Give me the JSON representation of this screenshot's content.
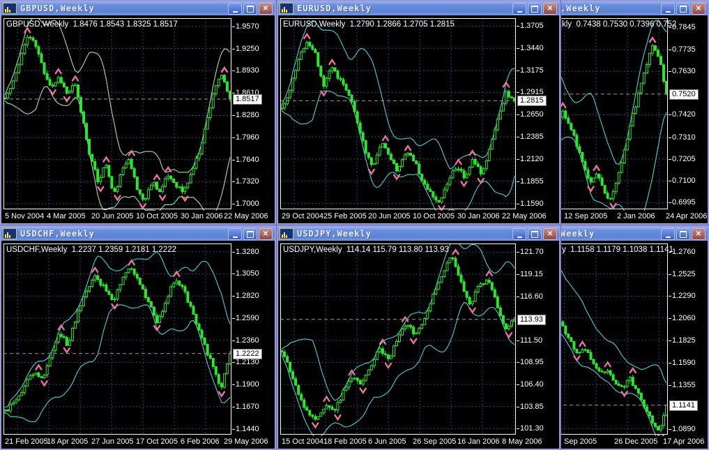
{
  "app": {
    "window_controls": {
      "minimize": "_",
      "maximize": "□",
      "close": "✕"
    }
  },
  "colors": {
    "candle_green": "#2ce62c",
    "band_cyan": "#46d2d8",
    "band_green": "#9fe2b2",
    "arrow_pink": "#e8739b",
    "grid_blue": "#3c3c7a",
    "titlebar_blue": "#5c82d6",
    "plot_frame": "#ffffff",
    "current_line_gray": "#9a9a9a"
  },
  "chart_data": [
    {
      "type": "candlestick",
      "window_title": "GBPUSD,Weekly",
      "info": "GBPUSD,Weekly  1.8476 1.8543 1.8325 1.8517",
      "ohlc": {
        "open": "1.8476",
        "high": "1.8543",
        "low": "1.8325",
        "close": "1.8517"
      },
      "y_ticks": [
        "1.9570",
        "1.9250",
        "1.8930",
        "1.8610",
        "1.8280",
        "1.7960",
        "1.7640",
        "1.7320",
        "1.7000"
      ],
      "current": "1.8517",
      "x_dates": [
        "5 Nov 2004",
        "4 Mar 2005",
        "20 Jun 2005",
        "10 Oct 2005",
        "30 Jan 2006",
        "22 May 2006"
      ],
      "ylim": [
        1.692,
        1.969
      ],
      "series_shape": [
        1.853,
        1.872,
        1.912,
        1.945,
        1.928,
        1.893,
        1.869,
        1.884,
        1.859,
        1.873,
        1.824,
        1.768,
        1.732,
        1.759,
        1.711,
        1.744,
        1.769,
        1.721,
        1.704,
        1.734,
        1.717,
        1.741,
        1.729,
        1.716,
        1.744,
        1.774,
        1.819,
        1.869,
        1.885,
        1.8517
      ],
      "band_color": "#9fe2b2",
      "seed": 11
    },
    {
      "type": "candlestick",
      "window_title": "EURUSD,Weekly",
      "info": "EURUSD,Weekly  1.2790 1.2866 1.2705 1.2815",
      "ohlc": {
        "open": "1.2790",
        "high": "1.2866",
        "low": "1.2705",
        "close": "1.2815"
      },
      "y_ticks": [
        "1.3705",
        "1.3440",
        "1.3175",
        "1.2915",
        "1.2650",
        "1.2385",
        "1.2120",
        "1.1855",
        "1.1590"
      ],
      "current": "1.2815",
      "x_dates": [
        "29 Oct 2004",
        "25 Feb 2005",
        "20 Jun 2005",
        "10 Oct 2005",
        "30 Jan 2006",
        "22 May 2006"
      ],
      "ylim": [
        1.152,
        1.38
      ],
      "series_shape": [
        1.272,
        1.294,
        1.329,
        1.354,
        1.341,
        1.299,
        1.321,
        1.307,
        1.294,
        1.261,
        1.224,
        1.204,
        1.234,
        1.217,
        1.197,
        1.224,
        1.209,
        1.184,
        1.169,
        1.161,
        1.184,
        1.204,
        1.191,
        1.211,
        1.194,
        1.224,
        1.261,
        1.291,
        1.2815
      ],
      "band_color": "#46d2d8",
      "seed": 22
    },
    {
      "type": "candlestick",
      "window_title": ",Weekly",
      "info": "kly  0.7438 0.7530 0.7396 0.752",
      "ohlc": {
        "open": "0.7438",
        "high": "0.7530",
        "low": "0.7396",
        "close": "0.7520"
      },
      "y_ticks": [
        "0.7845",
        "0.7735",
        "0.7630",
        "0.7420",
        "0.7310",
        "0.7205",
        "0.7100",
        "0.6995"
      ],
      "current": "0.7520",
      "x_dates": [
        "12 Sep 2005",
        "2 Jan 2006",
        "24 Apr 2006"
      ],
      "ylim": [
        0.6962,
        0.7888
      ],
      "series_shape": [
        0.766,
        0.76,
        0.753,
        0.747,
        0.74,
        0.734,
        0.744,
        0.738,
        0.728,
        0.718,
        0.708,
        0.714,
        0.704,
        0.7,
        0.712,
        0.726,
        0.74,
        0.752,
        0.764,
        0.776,
        0.77,
        0.752
      ],
      "band_color": "#46d2d8",
      "seed": 33
    },
    {
      "type": "candlestick",
      "window_title": "USDCHF,Weekly",
      "info": "USDCHF,Weekly  1.2237 1.2359 1.2181 1.2222",
      "ohlc": {
        "open": "1.2237",
        "high": "1.2359",
        "low": "1.2181",
        "close": "1.2222"
      },
      "y_ticks": [
        "1.3280",
        "1.3050",
        "1.2820",
        "1.2590",
        "1.2360",
        "1.2130",
        "1.1900",
        "1.1670",
        "1.1440"
      ],
      "current": "1.2222",
      "x_dates": [
        "21 Feb 2005",
        "18 Apr 2005",
        "27 Jun 2005",
        "17 Oct 2005",
        "6 Feb 2006",
        "29 May 2006"
      ],
      "ylim": [
        1.138,
        1.3365
      ],
      "series_shape": [
        1.162,
        1.171,
        1.184,
        1.204,
        1.194,
        1.217,
        1.244,
        1.231,
        1.261,
        1.287,
        1.304,
        1.291,
        1.277,
        1.299,
        1.311,
        1.294,
        1.274,
        1.254,
        1.281,
        1.301,
        1.284,
        1.261,
        1.234,
        1.211,
        1.187,
        1.2222
      ],
      "band_color": "#46d2d8",
      "seed": 44
    },
    {
      "type": "candlestick",
      "window_title": "USDJPY,Weekly",
      "info": "USDJPY,Weekly  114.14 115.79 113.80 113.93",
      "ohlc": {
        "open": "114.14",
        "high": "115.79",
        "low": "113.80",
        "close": "113.93"
      },
      "y_ticks": [
        "121.70",
        "119.15",
        "116.60",
        "111.50",
        "108.95",
        "106.40",
        "103.85",
        "101.30"
      ],
      "current": "113.93",
      "x_dates": [
        "15 Oct 2004",
        "18 Feb 2005",
        "6 Jun 2005",
        "26 Sep 2005",
        "16 Jan 2006",
        "8 May 2006"
      ],
      "ylim": [
        100.6,
        122.7
      ],
      "series_shape": [
        110.2,
        108.0,
        105.0,
        103.0,
        102.5,
        104.2,
        103.5,
        105.8,
        107.5,
        106.5,
        108.8,
        110.5,
        109.2,
        111.8,
        113.5,
        112.0,
        114.2,
        116.8,
        119.5,
        121.3,
        118.5,
        115.5,
        117.8,
        118.6,
        115.8,
        112.8,
        113.93
      ],
      "band_color": "#46d2d8",
      "seed": 55
    },
    {
      "type": "candlestick",
      "window_title": "Weekly",
      "info": "y  1.1158 1.1179 1.1038 1.1141",
      "ohlc": {
        "open": "1.1158",
        "high": "1.1179",
        "low": "1.1038",
        "close": "1.1141"
      },
      "y_ticks": [
        "1.2760",
        "1.2525",
        "1.2290",
        "1.2060",
        "1.1825",
        "1.1590",
        "1.1355",
        "1.0890"
      ],
      "current": "1.1141",
      "x_dates": [
        "Sep 2005",
        "26 Dec 2005",
        "17 Apr 2006"
      ],
      "ylim": [
        1.083,
        1.2845
      ],
      "series_shape": [
        1.262,
        1.252,
        1.24,
        1.228,
        1.215,
        1.205,
        1.192,
        1.178,
        1.168,
        1.175,
        1.158,
        1.148,
        1.152,
        1.138,
        1.13,
        1.142,
        1.128,
        1.112,
        1.096,
        1.088,
        1.1141
      ],
      "band_color": "#46d2d8",
      "seed": 66
    }
  ]
}
